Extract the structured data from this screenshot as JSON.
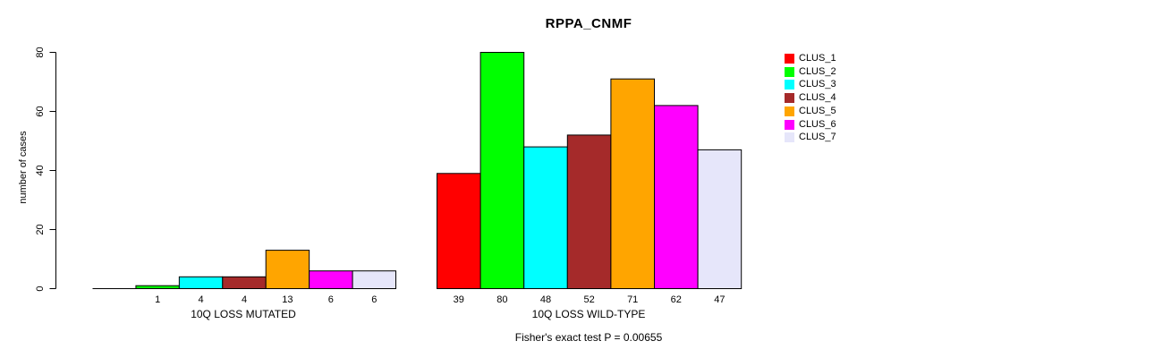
{
  "chart_data": {
    "type": "bar",
    "title": "RPPA_CNMF",
    "ylabel": "number of cases",
    "xlabel": "",
    "ylim": [
      0,
      80
    ],
    "yticks": [
      0,
      20,
      40,
      60,
      80
    ],
    "grid": false,
    "legend_position": "top-right",
    "categories": [
      "CLUS_1",
      "CLUS_2",
      "CLUS_3",
      "CLUS_4",
      "CLUS_5",
      "CLUS_6",
      "CLUS_7"
    ],
    "colors": [
      "#FF0000",
      "#00FF00",
      "#00FFFF",
      "#A52A2A",
      "#FFA500",
      "#FF00FF",
      "#E6E6FA"
    ],
    "bar_border_color": "#000000",
    "groups": [
      {
        "label": "10Q LOSS MUTATED",
        "values": [
          0,
          1,
          4,
          4,
          13,
          6,
          6
        ]
      },
      {
        "label": "10Q LOSS WILD-TYPE",
        "values": [
          39,
          80,
          48,
          52,
          71,
          62,
          47
        ]
      }
    ],
    "value_labels": {
      "shown": true,
      "hide_zero": true
    },
    "annotation": "Fisher's exact test P = 0.00655"
  }
}
